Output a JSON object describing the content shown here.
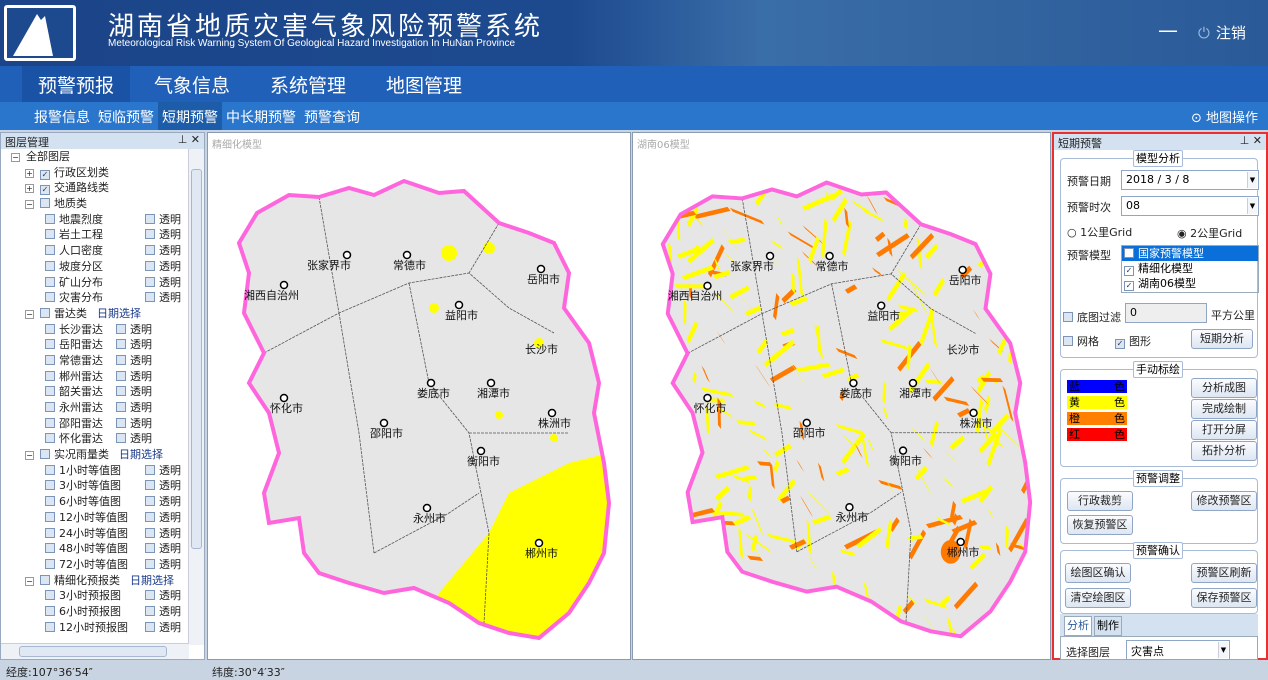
{
  "header": {
    "title": "湖南省地质灾害气象风险预警系统",
    "subtitle": "Meteorological Risk Warning System Of Geological Hazard Investigation In HuNan Province",
    "minimize": "—",
    "logout": "注销",
    "logout_icon": "power-icon"
  },
  "nav": {
    "items": [
      "预警预报",
      "气象信息",
      "系统管理",
      "地图管理"
    ],
    "active": 0
  },
  "subnav": {
    "items": [
      "报警信息",
      "短临预警",
      "短期预警",
      "中长期预警",
      "预警查询"
    ],
    "active": 2,
    "map_ops": "地图操作",
    "map_ops_icon": "map-pin-icon"
  },
  "layer_panel": {
    "title": "图层管理",
    "root": "全部图层",
    "transparent": "透明",
    "date_select": "日期选择",
    "groups": [
      {
        "label": "行政区划类",
        "checked": true,
        "collapsed": true,
        "items": []
      },
      {
        "label": "交通路线类",
        "checked": true,
        "collapsed": true,
        "items": []
      },
      {
        "label": "地质类",
        "checked": false,
        "items": [
          "地震烈度",
          "岩土工程",
          "人口密度",
          "坡度分区",
          "矿山分布",
          "灾害分布"
        ]
      },
      {
        "label": "雷达类",
        "date": true,
        "items": [
          "长沙雷达",
          "岳阳雷达",
          "常德雷达",
          "郴州雷达",
          "韶关雷达",
          "永州雷达",
          "邵阳雷达",
          "怀化雷达"
        ]
      },
      {
        "label": "实况雨量类",
        "date": true,
        "items": [
          "1小时等值图",
          "3小时等值图",
          "6小时等值图",
          "12小时等值图",
          "24小时等值图",
          "48小时等值图",
          "72小时等值图"
        ]
      },
      {
        "label": "精细化预报类",
        "date": true,
        "items": [
          "3小时预报图",
          "6小时预报图",
          "12小时预报图"
        ]
      }
    ]
  },
  "maps": [
    {
      "caption": "精细化模型"
    },
    {
      "caption": "湖南06模型"
    }
  ],
  "cities": [
    "张家界市",
    "常德市",
    "岳阳市",
    "湘西自治州",
    "益阳市",
    "长沙市",
    "怀化市",
    "娄底市",
    "湘潭市",
    "株洲市",
    "邵阳市",
    "衡阳市",
    "永州市",
    "郴州市"
  ],
  "colors": {
    "map_fill": "#e6e6e6",
    "border": "#ff66dd",
    "yellow": "#ffff00",
    "orange": "#ff7a00",
    "panel_border": "#e83030"
  },
  "short_term": {
    "title": "短期预警",
    "model_analysis": {
      "title": "模型分析",
      "date_label": "预警日期",
      "date_value": "2018 / 3 / 8",
      "time_label": "预警时次",
      "time_value": "08",
      "grid1": "1公里Grid",
      "grid2": "2公里Grid",
      "grid_selected": "2公里Grid",
      "model_label": "预警模型",
      "models": [
        {
          "label": "国家预警模型",
          "checked": false,
          "selected": true
        },
        {
          "label": "精细化模型",
          "checked": true
        },
        {
          "label": "湖南06模型",
          "checked": true
        }
      ],
      "filter_label": "底图过滤",
      "filter_checked": false,
      "filter_value": "0",
      "filter_unit": "平方公里",
      "grid_label": "网格",
      "grid_checked": false,
      "shape_label": "图形",
      "shape_checked": true,
      "analyze_button": "短期分析"
    },
    "manual": {
      "title": "手动标绘",
      "colors": [
        {
          "name": "蓝",
          "suffix": "色",
          "hex": "#0000ff"
        },
        {
          "name": "黄",
          "suffix": "色",
          "hex": "#ffff00"
        },
        {
          "name": "橙",
          "suffix": "色",
          "hex": "#ff7f00"
        },
        {
          "name": "红",
          "suffix": "色",
          "hex": "#ff0000"
        }
      ],
      "buttons": [
        "分析成图",
        "完成绘制",
        "打开分屏",
        "拓扑分析"
      ]
    },
    "adjust": {
      "title": "预警调整",
      "buttons": [
        "行政裁剪",
        "修改预警区",
        "恢复预警区"
      ]
    },
    "confirm": {
      "title": "预警确认",
      "buttons": [
        "绘图区确认",
        "预警区刷新",
        "清空绘图区",
        "保存预警区"
      ]
    },
    "tabs": [
      "分析",
      "制作"
    ],
    "active_tab": 0,
    "layer_select_label": "选择图层",
    "layer_select_value": "灾害点"
  },
  "status": {
    "longitude": "经度:107°36′54″",
    "latitude": "纬度:30°4′33″"
  }
}
